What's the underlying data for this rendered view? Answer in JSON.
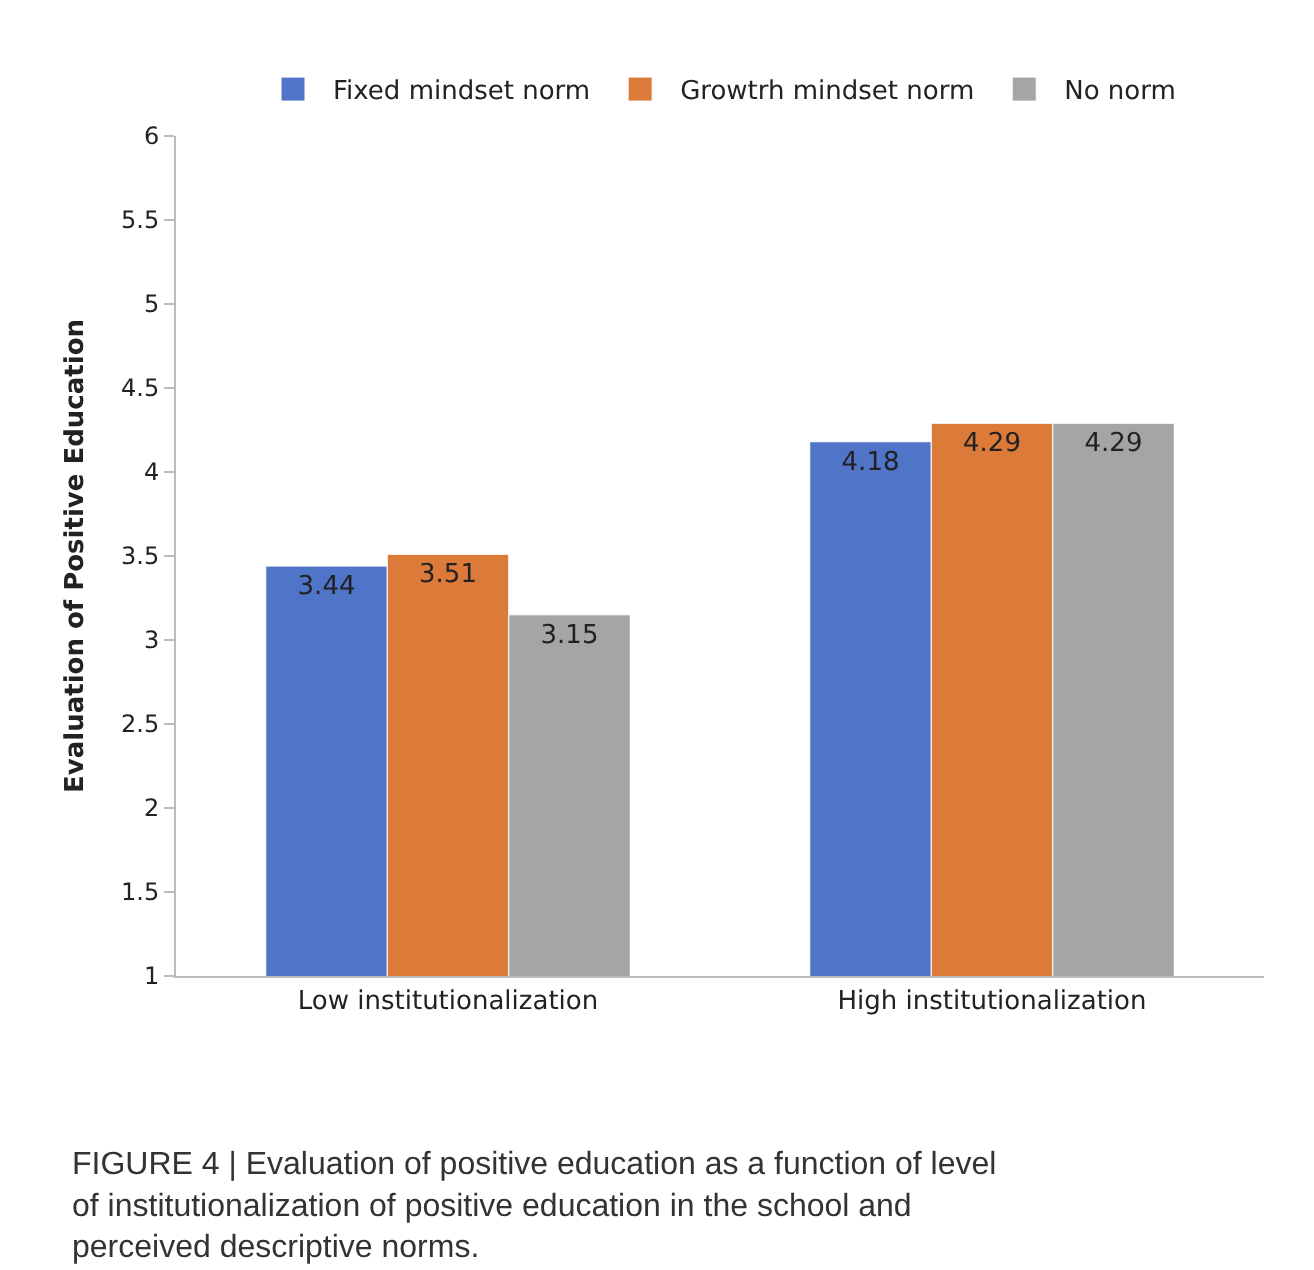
{
  "chart_data": {
    "type": "bar",
    "ylabel": "Evaluation of Positive Education",
    "categories": [
      "Low institutionalization",
      "High institutionalization"
    ],
    "series": [
      {
        "name": "Fixed mindset norm",
        "color": "#5074c8",
        "values": [
          3.44,
          4.18
        ]
      },
      {
        "name": "Growtrh mindset norm",
        "color": "#dc7a3a",
        "values": [
          3.51,
          4.29
        ]
      },
      {
        "name": "No norm",
        "color": "#a5a5a5",
        "values": [
          3.15,
          4.29
        ]
      }
    ],
    "ylim": [
      1,
      6
    ],
    "yticks": [
      1,
      1.5,
      2,
      2.5,
      3,
      3.5,
      4,
      4.5,
      5,
      5.5,
      6
    ],
    "legend": "top",
    "data_labels": true,
    "annotations": [
      "FIGURE 4 | Evaluation of positive education as a function of level of institutionalization of positive education in the school and perceived descriptive norms."
    ]
  }
}
